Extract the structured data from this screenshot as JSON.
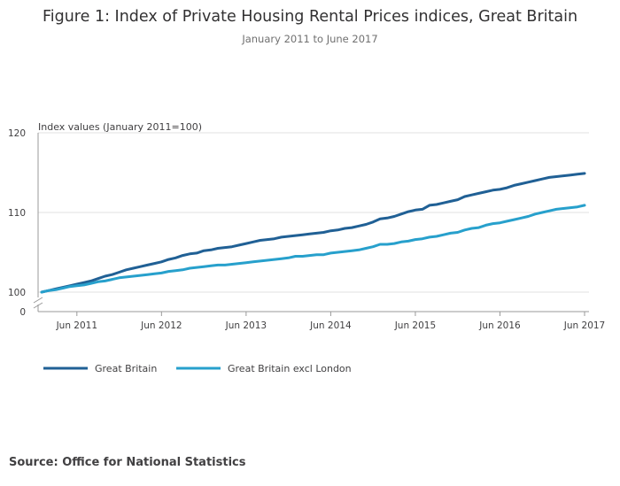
{
  "chart_data": {
    "type": "line",
    "title": "Figure 1: Index of Private Housing Rental Prices indices, Great Britain",
    "subtitle": "January 2011 to June 2017",
    "ylabel": "Index values (January 2011=100)",
    "xlabel": "",
    "ylim": [
      100,
      120
    ],
    "y_ticks": [
      "120",
      "110",
      "100",
      "0"
    ],
    "x_ticks": [
      {
        "label": "Jun 2011",
        "month": "2011-06"
      },
      {
        "label": "Jun 2012",
        "month": "2012-06"
      },
      {
        "label": "Jun 2013",
        "month": "2013-06"
      },
      {
        "label": "Jun 2014",
        "month": "2014-06"
      },
      {
        "label": "Jun 2015",
        "month": "2015-06"
      },
      {
        "label": "Jun 2016",
        "month": "2016-06"
      },
      {
        "label": "Jun 2017",
        "month": "2017-06"
      }
    ],
    "x_start": "2011-01",
    "x_end": "2017-06",
    "axis_break": true,
    "grid": true,
    "legend_position": "bottom-left",
    "series": [
      {
        "name": "Great Britain",
        "color": "#206095",
        "values": [
          100.0,
          100.2,
          100.4,
          100.6,
          100.8,
          101.0,
          101.2,
          101.4,
          101.7,
          102.0,
          102.2,
          102.5,
          102.8,
          103.0,
          103.2,
          103.4,
          103.6,
          103.8,
          104.1,
          104.3,
          104.6,
          104.8,
          104.9,
          105.2,
          105.3,
          105.5,
          105.6,
          105.7,
          105.9,
          106.1,
          106.3,
          106.5,
          106.6,
          106.7,
          106.9,
          107.0,
          107.1,
          107.2,
          107.3,
          107.4,
          107.5,
          107.7,
          107.8,
          108.0,
          108.1,
          108.3,
          108.5,
          108.8,
          109.2,
          109.3,
          109.5,
          109.8,
          110.1,
          110.3,
          110.4,
          110.9,
          111.0,
          111.2,
          111.4,
          111.6,
          112.0,
          112.2,
          112.4,
          112.6,
          112.8,
          112.9,
          113.1,
          113.4,
          113.6,
          113.8,
          114.0,
          114.2,
          114.4,
          114.5,
          114.6,
          114.7,
          114.8,
          114.9
        ]
      },
      {
        "name": "Great Britain excl London",
        "color": "#27a0cc",
        "values": [
          100.0,
          100.2,
          100.3,
          100.5,
          100.7,
          100.8,
          100.9,
          101.1,
          101.3,
          101.4,
          101.6,
          101.8,
          101.9,
          102.0,
          102.1,
          102.2,
          102.3,
          102.4,
          102.6,
          102.7,
          102.8,
          103.0,
          103.1,
          103.2,
          103.3,
          103.4,
          103.4,
          103.5,
          103.6,
          103.7,
          103.8,
          103.9,
          104.0,
          104.1,
          104.2,
          104.3,
          104.5,
          104.5,
          104.6,
          104.7,
          104.7,
          104.9,
          105.0,
          105.1,
          105.2,
          105.3,
          105.5,
          105.7,
          106.0,
          106.0,
          106.1,
          106.3,
          106.4,
          106.6,
          106.7,
          106.9,
          107.0,
          107.2,
          107.4,
          107.5,
          107.8,
          108.0,
          108.1,
          108.4,
          108.6,
          108.7,
          108.9,
          109.1,
          109.3,
          109.5,
          109.8,
          110.0,
          110.2,
          110.4,
          110.5,
          110.6,
          110.7,
          110.9
        ]
      }
    ]
  },
  "source": {
    "text": "Source: Office for National Statistics"
  }
}
